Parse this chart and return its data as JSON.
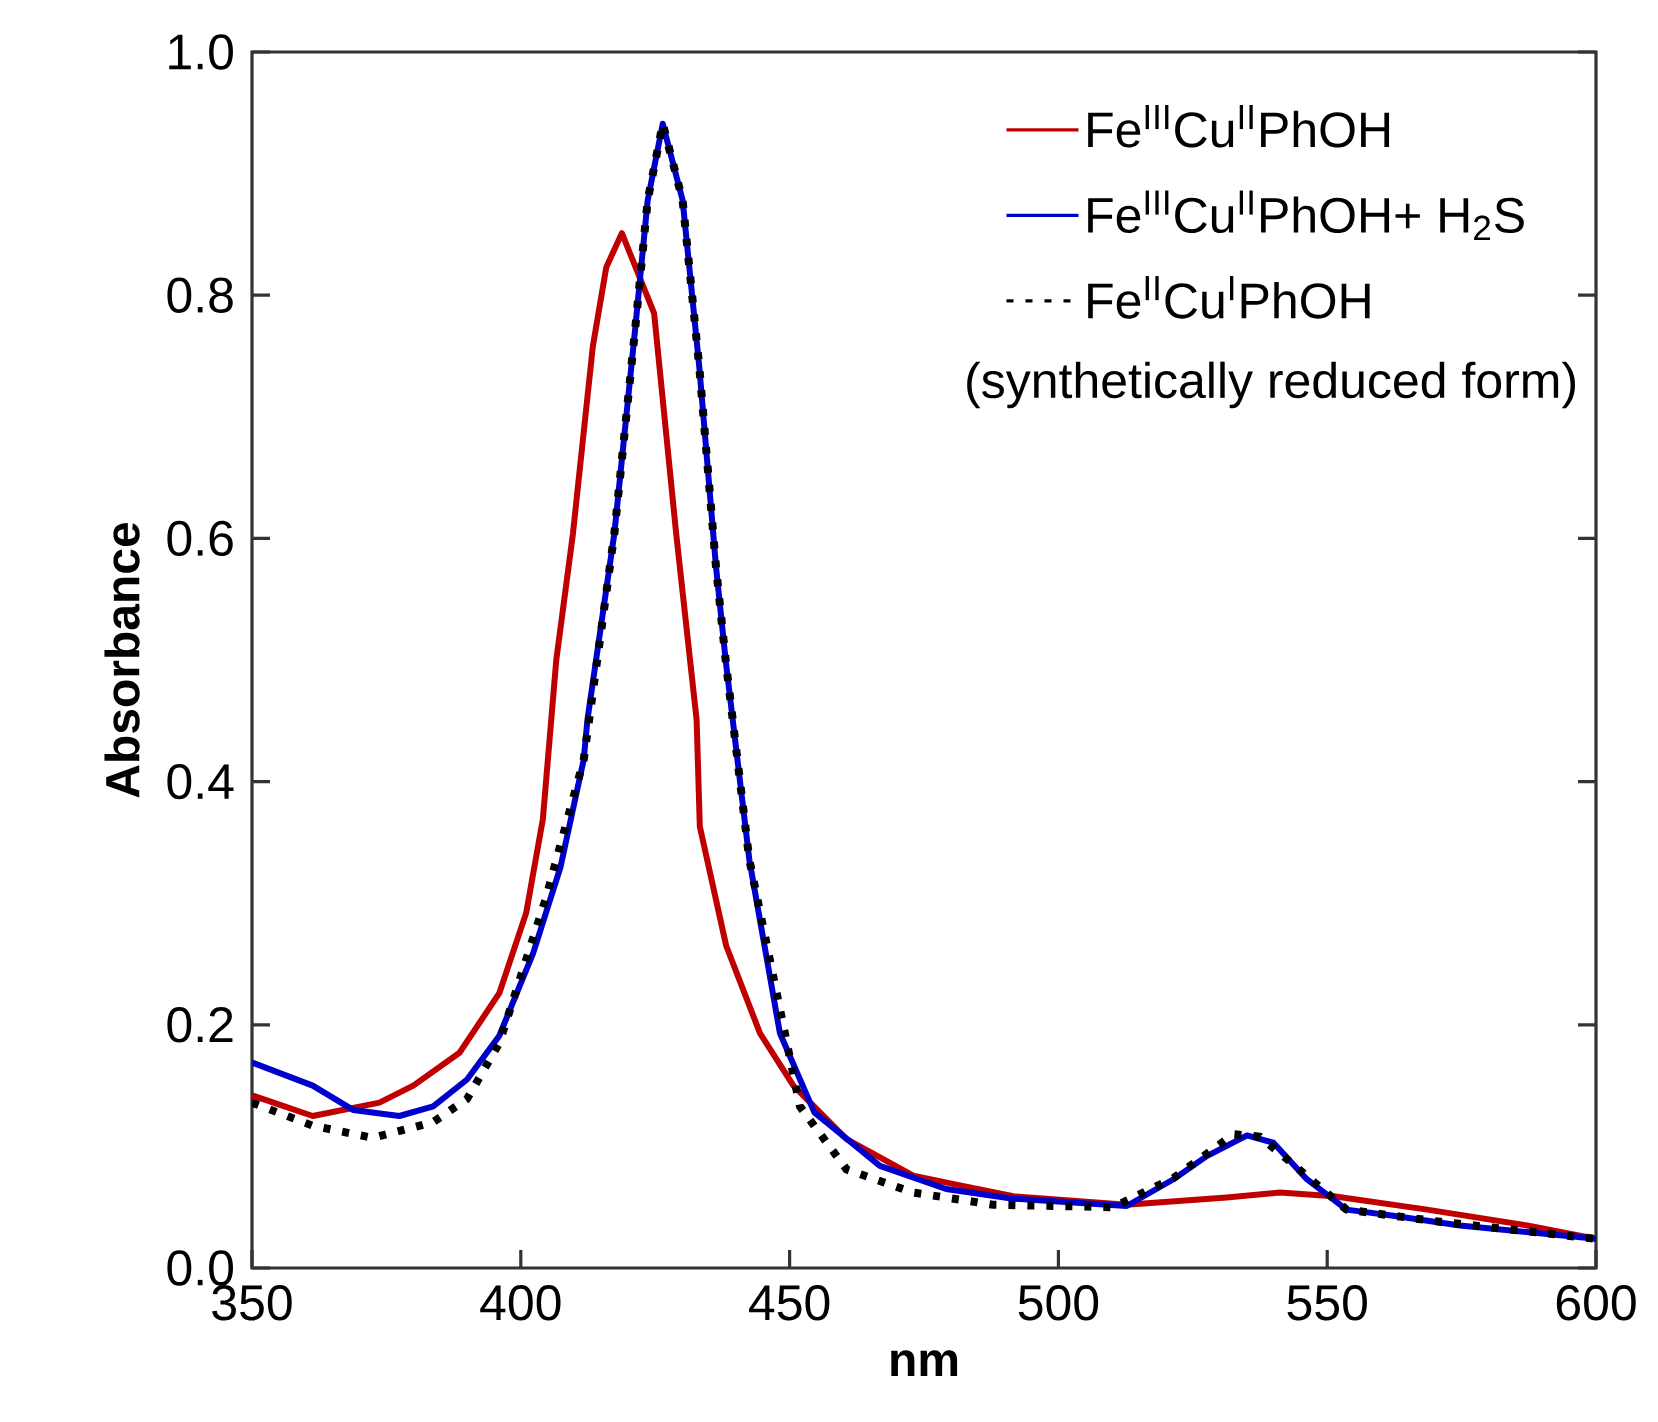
{
  "chart_data": {
    "type": "line",
    "xlabel": "nm",
    "ylabel": "Absorbance",
    "xlim": [
      350,
      600
    ],
    "ylim": [
      0,
      1
    ],
    "xticks": [
      350,
      400,
      450,
      500,
      550,
      600
    ],
    "yticks": [
      {
        "value": 0,
        "label": "0.0"
      },
      {
        "value": 0.2,
        "label": "0.2"
      },
      {
        "value": 0.4,
        "label": "0.4"
      },
      {
        "value": 0.6,
        "label": "0.6"
      },
      {
        "value": 0.8,
        "label": "0.8"
      },
      {
        "value": 1,
        "label": "1.0"
      }
    ],
    "legend": "top right",
    "grid": false,
    "annotations": [
      "(synthetically reduced form)"
    ],
    "series": [
      {
        "name": "Fe$^{III}$Cu$^{II}$PhOH",
        "color": "#c00000",
        "line_style": "solid",
        "x": [
          350,
          361.3,
          373.7,
          380,
          388.6,
          396,
          401,
          404.1,
          406.6,
          409.7,
          413.4,
          415.9,
          418.8,
          424.8,
          428.9,
          432.7,
          433.3,
          438.2,
          444.5,
          450.7,
          460.6,
          473,
          481.7,
          491.6,
          512.7,
          531.3,
          541.2,
          551.2,
          568.6,
          587.2,
          600
        ],
        "values": [
          0.142,
          0.125,
          0.136,
          0.15,
          0.177,
          0.226,
          0.292,
          0.369,
          0.5,
          0.604,
          0.758,
          0.823,
          0.851,
          0.785,
          0.604,
          0.451,
          0.363,
          0.265,
          0.193,
          0.15,
          0.106,
          0.076,
          0.068,
          0.059,
          0.052,
          0.058,
          0.062,
          0.059,
          0.048,
          0.035,
          0.024
        ]
      },
      {
        "name": "Fe$^{III}$Cu$^{II}$PhOH+ H$_{2}$S",
        "color": "#0000cc",
        "line_style": "solid",
        "x": [
          350,
          361.3,
          368.8,
          377.4,
          383.7,
          390,
          396,
          402.3,
          407.4,
          411.7,
          412.4,
          417.4,
          421.2,
          423.6,
          426.4,
          430.1,
          433.2,
          436.3,
          438.1,
          442.5,
          448.2,
          454.6,
          466.8,
          479.1,
          491.6,
          512.7,
          521.4,
          527.6,
          535.1,
          540,
          546.2,
          553.6,
          562.3,
          574.7,
          600
        ],
        "values": [
          0.169,
          0.15,
          0.13,
          0.125,
          0.133,
          0.155,
          0.191,
          0.259,
          0.33,
          0.418,
          0.451,
          0.604,
          0.769,
          0.878,
          0.941,
          0.878,
          0.741,
          0.577,
          0.5,
          0.336,
          0.193,
          0.128,
          0.084,
          0.065,
          0.057,
          0.051,
          0.073,
          0.092,
          0.109,
          0.103,
          0.073,
          0.048,
          0.043,
          0.035,
          0.024
        ]
      },
      {
        "name": "Fe$^{II}$Cu$^{I}$PhOH",
        "color": "#000000",
        "line_style": "dotted",
        "x": [
          350,
          361.3,
          372.5,
          383.7,
          390,
          396,
          404.6,
          411.7,
          417.4,
          421.2,
          423.6,
          426.4,
          430.1,
          433.2,
          436.3,
          438.1,
          442.5,
          451.9,
          460.6,
          473,
          487.9,
          510.2,
          521.4,
          532.6,
          537.5,
          544,
          553.6,
          571,
          600
        ],
        "values": [
          0.136,
          0.117,
          0.107,
          0.12,
          0.139,
          0.185,
          0.303,
          0.418,
          0.604,
          0.769,
          0.878,
          0.941,
          0.878,
          0.741,
          0.577,
          0.5,
          0.336,
          0.133,
          0.081,
          0.062,
          0.052,
          0.05,
          0.074,
          0.11,
          0.108,
          0.084,
          0.048,
          0.038,
          0.024
        ]
      }
    ]
  }
}
